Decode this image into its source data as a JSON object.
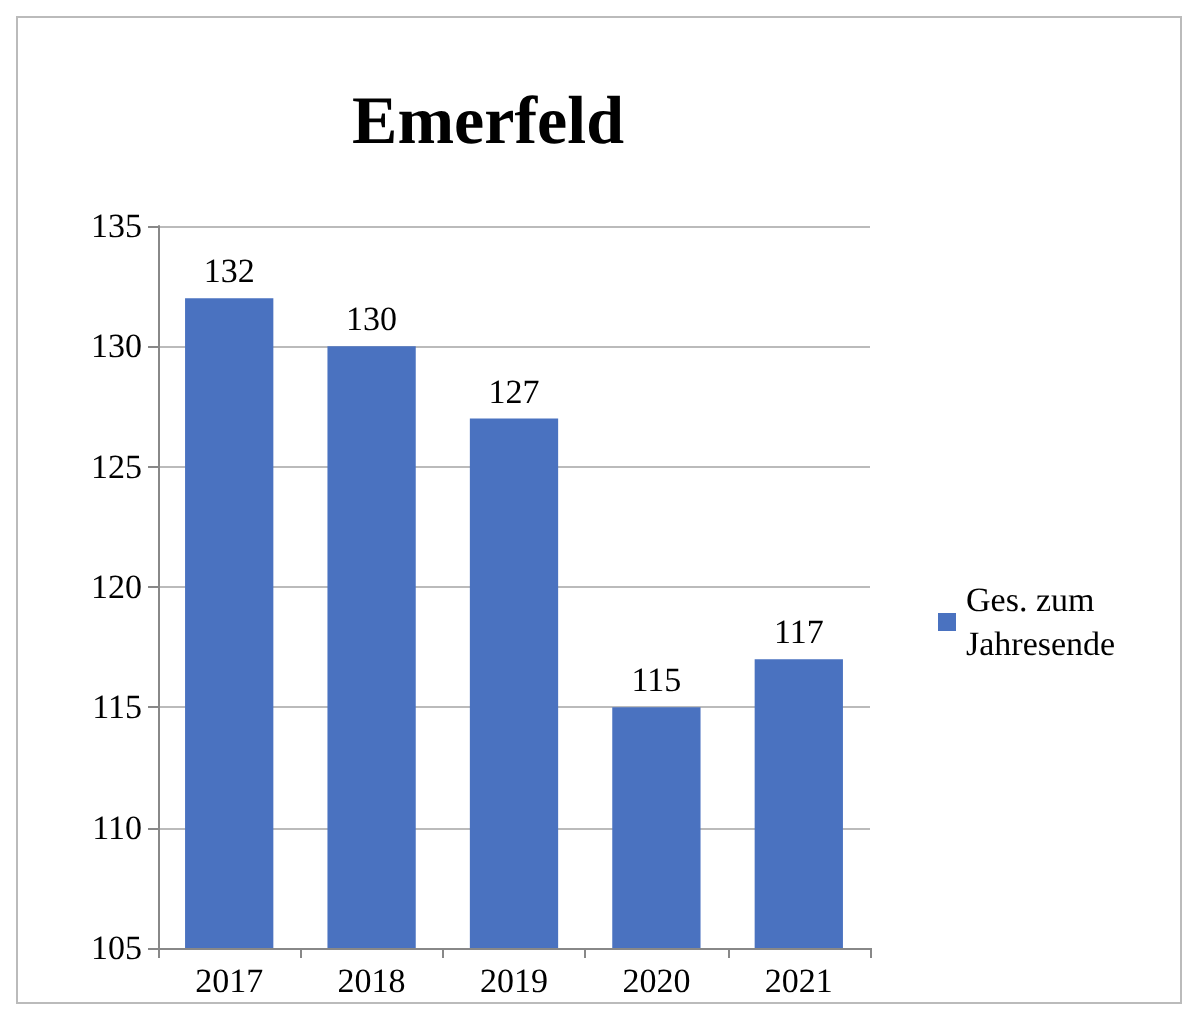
{
  "chart_data": {
    "type": "bar",
    "title": "Emerfeld",
    "categories": [
      "2017",
      "2018",
      "2019",
      "2020",
      "2021"
    ],
    "series": [
      {
        "name": "Ges. zum Jahresende",
        "color": "#4a72c0",
        "values": [
          132,
          130,
          127,
          115,
          117
        ]
      }
    ],
    "ylim": [
      105,
      135
    ],
    "yticks": [
      105,
      110,
      115,
      120,
      125,
      130,
      135
    ],
    "grid": "y",
    "legend": "right",
    "data_labels": true
  }
}
